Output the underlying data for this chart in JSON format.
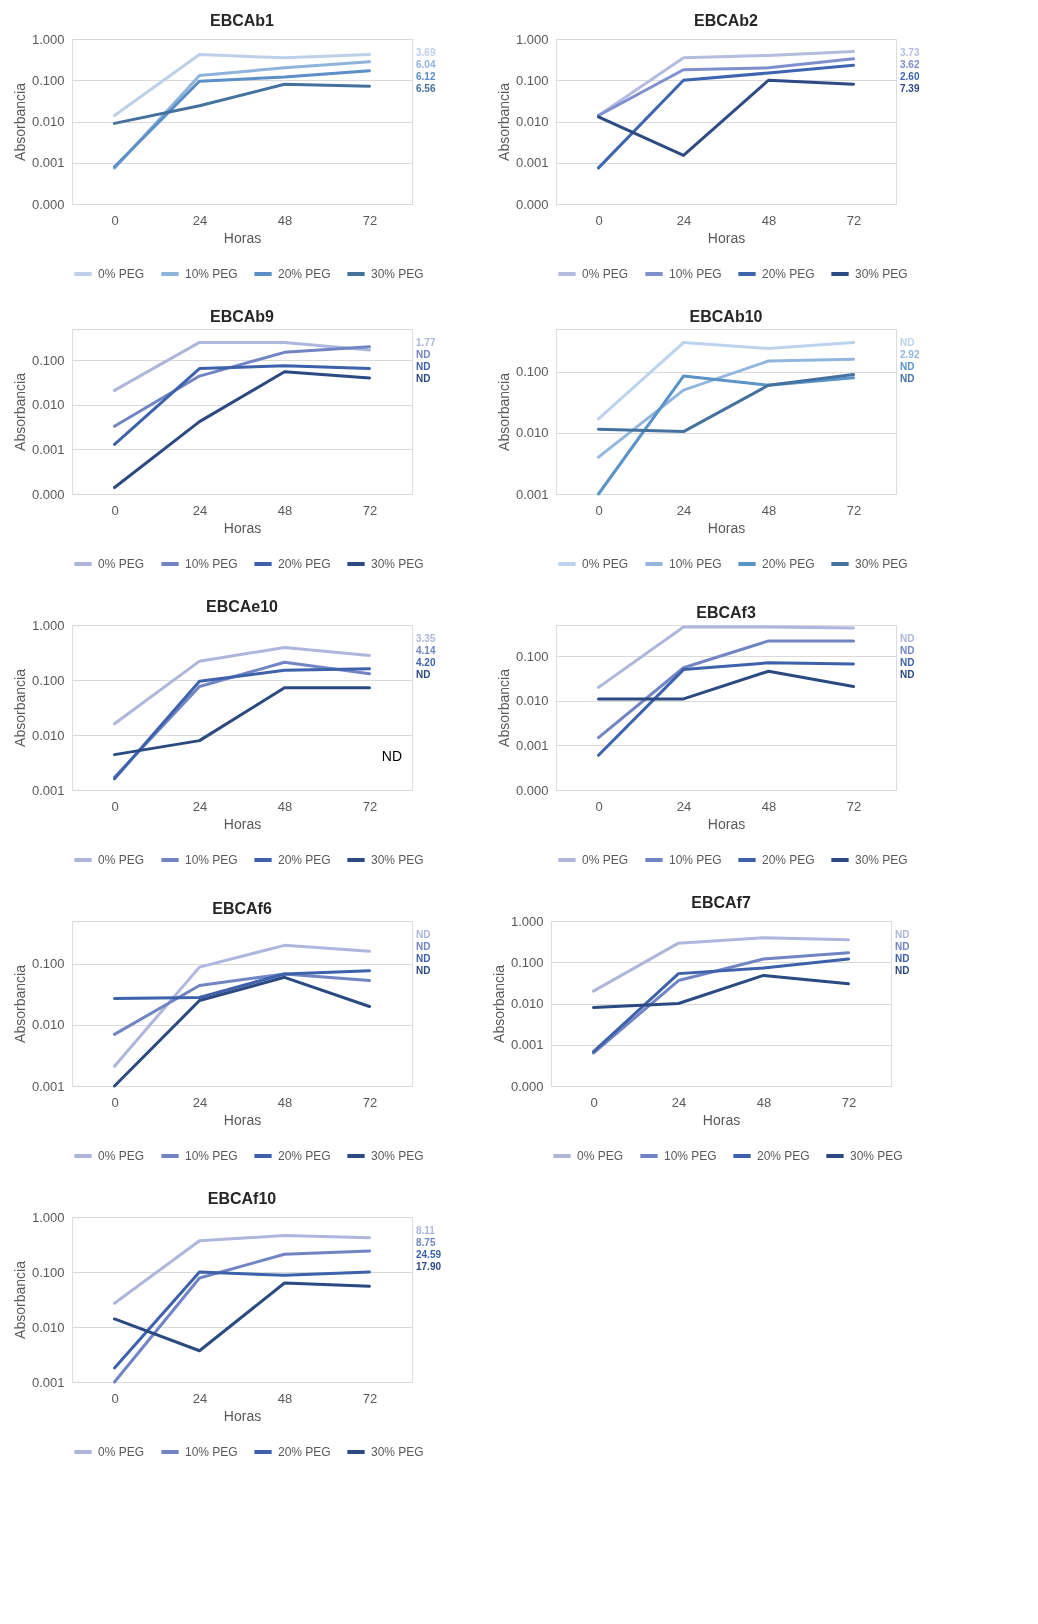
{
  "chart_data": [
    {
      "type": "line",
      "title": "EBCAb1",
      "xlabel": "Horas",
      "ylabel": "Absorbancia",
      "categories": [
        "0",
        "24",
        "48",
        "72"
      ],
      "log": true,
      "grid": "y",
      "legend": "bottom",
      "ylim": [
        0.0001,
        1
      ],
      "yticks": [
        {
          "value": 1,
          "label": "1.000"
        },
        {
          "value": 0.1,
          "label": "0.100"
        },
        {
          "value": 0.01,
          "label": "0.010"
        },
        {
          "value": 0.001,
          "label": "0.001"
        },
        {
          "value": 0.0001,
          "label": "0.000"
        }
      ],
      "series": [
        {
          "name": "0% PEG",
          "color": "#bdd0ea",
          "values": [
            0.014,
            0.42,
            0.35,
            0.42
          ]
        },
        {
          "name": "10% PEG",
          "color": "#8fb4dc",
          "values": [
            0.00074,
            0.13,
            0.2,
            0.28
          ]
        },
        {
          "name": "20% PEG",
          "color": "#5a8fc7",
          "values": [
            0.0008,
            0.095,
            0.12,
            0.17
          ]
        },
        {
          "name": "30% PEG",
          "color": "#44729d",
          "values": [
            0.009,
            0.024,
            0.08,
            0.072
          ]
        }
      ],
      "annotations": [
        "3.69",
        "6.04",
        "6.12",
        "6.56"
      ]
    },
    {
      "type": "line",
      "title": "EBCAb2",
      "xlabel": "Horas",
      "ylabel": "Absorbancia",
      "categories": [
        "0",
        "24",
        "48",
        "72"
      ],
      "log": true,
      "grid": "y",
      "legend": "bottom",
      "ylim": [
        0.0001,
        1
      ],
      "yticks": [
        {
          "value": 1,
          "label": "1.000"
        },
        {
          "value": 0.1,
          "label": "0.100"
        },
        {
          "value": 0.01,
          "label": "0.010"
        },
        {
          "value": 0.001,
          "label": "0.001"
        },
        {
          "value": 0.0001,
          "label": "0.000"
        }
      ],
      "series": [
        {
          "name": "0% PEG",
          "color": "#b4bde0",
          "values": [
            0.014,
            0.35,
            0.4,
            0.5
          ]
        },
        {
          "name": "10% PEG",
          "color": "#7d8fcc",
          "values": [
            0.014,
            0.18,
            0.2,
            0.33
          ]
        },
        {
          "name": "20% PEG",
          "color": "#3d65b0",
          "values": [
            0.00075,
            0.1,
            0.15,
            0.23
          ]
        },
        {
          "name": "30% PEG",
          "color": "#2e4a85",
          "values": [
            0.013,
            0.0015,
            0.1,
            0.08
          ]
        }
      ],
      "annotations": [
        "3.73",
        "3.62",
        "2.60",
        "7.39"
      ]
    },
    {
      "type": "line",
      "title": "EBCAb9",
      "xlabel": "Horas",
      "ylabel": "Absorbancia",
      "categories": [
        "0",
        "24",
        "48",
        "72"
      ],
      "log": true,
      "grid": "y",
      "legend": "bottom",
      "ylim": [
        0.0001,
        0.5
      ],
      "yticks": [
        {
          "value": 0.5,
          "label": null
        },
        {
          "value": 0.1,
          "label": "0.100"
        },
        {
          "value": 0.01,
          "label": "0.010"
        },
        {
          "value": 0.001,
          "label": "0.001"
        },
        {
          "value": 0.0001,
          "label": "0.000"
        }
      ],
      "series": [
        {
          "name": "0% PEG",
          "color": "#aeb6dc",
          "values": [
            0.021,
            0.25,
            0.25,
            0.17
          ]
        },
        {
          "name": "10% PEG",
          "color": "#7185c4",
          "values": [
            0.0033,
            0.044,
            0.15,
            0.2
          ]
        },
        {
          "name": "20% PEG",
          "color": "#3d62ab",
          "values": [
            0.0013,
            0.065,
            0.075,
            0.065
          ]
        },
        {
          "name": "30% PEG",
          "color": "#2c4a82",
          "values": [
            0.00014,
            0.0042,
            0.055,
            0.04
          ]
        }
      ],
      "annotations": [
        "1.77",
        "ND",
        "ND",
        "ND"
      ]
    },
    {
      "type": "line",
      "title": "EBCAb10",
      "xlabel": "Horas",
      "ylabel": "Absorbancia",
      "categories": [
        "0",
        "24",
        "48",
        "72"
      ],
      "log": true,
      "grid": "y",
      "legend": "bottom",
      "ylim": [
        0.001,
        0.5
      ],
      "yticks": [
        {
          "value": 0.5,
          "label": null
        },
        {
          "value": 0.1,
          "label": "0.100"
        },
        {
          "value": 0.01,
          "label": "0.010"
        },
        {
          "value": 0.001,
          "label": "0.001"
        }
      ],
      "series": [
        {
          "name": "0% PEG",
          "color": "#bcd3ee",
          "values": [
            0.017,
            0.3,
            0.24,
            0.3
          ]
        },
        {
          "name": "10% PEG",
          "color": "#92b6dd",
          "values": [
            0.004,
            0.05,
            0.15,
            0.16
          ]
        },
        {
          "name": "20% PEG",
          "color": "#5a93c8",
          "values": [
            0.001,
            0.085,
            0.06,
            0.08
          ]
        },
        {
          "name": "30% PEG",
          "color": "#4672a0",
          "values": [
            0.0115,
            0.0105,
            0.06,
            0.09
          ]
        }
      ],
      "annotations": [
        "ND",
        "2.92",
        "ND",
        "ND"
      ]
    },
    {
      "type": "line",
      "title": "EBCAe10",
      "xlabel": "Horas",
      "ylabel": "Absorbancia",
      "categories": [
        "0",
        "24",
        "48",
        "72"
      ],
      "log": true,
      "grid": "y",
      "legend": "bottom",
      "ylim": [
        0.001,
        1
      ],
      "yticks": [
        {
          "value": 1,
          "label": "1.000"
        },
        {
          "value": 0.1,
          "label": "0.100"
        },
        {
          "value": 0.01,
          "label": "0.010"
        },
        {
          "value": 0.001,
          "label": "0.001"
        }
      ],
      "series": [
        {
          "name": "0% PEG",
          "color": "#aeb6dc",
          "values": [
            0.016,
            0.22,
            0.39,
            0.28
          ]
        },
        {
          "name": "10% PEG",
          "color": "#7185c4",
          "values": [
            0.0017,
            0.076,
            0.21,
            0.13
          ]
        },
        {
          "name": "20% PEG",
          "color": "#3d62ab",
          "values": [
            0.0016,
            0.095,
            0.15,
            0.16
          ]
        },
        {
          "name": "30% PEG",
          "color": "#2c4a82",
          "values": [
            0.0044,
            0.0079,
            0.072,
            0.072
          ]
        }
      ],
      "annotations": [
        "3.35",
        "4.14",
        "4.20",
        "ND",
        "ND"
      ]
    },
    {
      "type": "line",
      "title": "EBCAf3",
      "xlabel": "Horas",
      "ylabel": "Absorbancia",
      "categories": [
        "0",
        "24",
        "48",
        "72"
      ],
      "log": true,
      "grid": "y",
      "legend": "bottom",
      "ylim": [
        0.0001,
        0.5
      ],
      "yticks": [
        {
          "value": 0.5,
          "label": null
        },
        {
          "value": 0.1,
          "label": "0.100"
        },
        {
          "value": 0.01,
          "label": "0.010"
        },
        {
          "value": 0.001,
          "label": "0.001"
        },
        {
          "value": 0.0001,
          "label": "0.000"
        }
      ],
      "series": [
        {
          "name": "0% PEG",
          "color": "#aeb6dc",
          "values": [
            0.02,
            0.45,
            0.45,
            0.43
          ]
        },
        {
          "name": "10% PEG",
          "color": "#7185c4",
          "values": [
            0.0015,
            0.055,
            0.22,
            0.22
          ]
        },
        {
          "name": "20% PEG",
          "color": "#3d62ab",
          "values": [
            0.0006,
            0.05,
            0.071,
            0.067
          ]
        },
        {
          "name": "30% PEG",
          "color": "#2c4a82",
          "values": [
            0.011,
            0.011,
            0.046,
            0.021
          ]
        }
      ],
      "annotations": [
        "ND",
        "ND",
        "ND",
        "ND"
      ]
    },
    {
      "type": "line",
      "title": "EBCAf6",
      "xlabel": "Horas",
      "ylabel": "Absorbancia",
      "categories": [
        "0",
        "24",
        "48",
        "72"
      ],
      "log": true,
      "grid": "y",
      "legend": "bottom",
      "ylim": [
        0.001,
        0.5
      ],
      "yticks": [
        {
          "value": 0.5,
          "label": null
        },
        {
          "value": 0.1,
          "label": "0.100"
        },
        {
          "value": 0.01,
          "label": "0.010"
        },
        {
          "value": 0.001,
          "label": "0.001"
        }
      ],
      "series": [
        {
          "name": "0% PEG",
          "color": "#aeb6dc",
          "values": [
            0.0021,
            0.088,
            0.2,
            0.16
          ]
        },
        {
          "name": "10% PEG",
          "color": "#7185c4",
          "values": [
            0.007,
            0.044,
            0.068,
            0.053
          ]
        },
        {
          "name": "20% PEG",
          "color": "#3d62ab",
          "values": [
            0.027,
            0.028,
            0.068,
            0.077
          ]
        },
        {
          "name": "30% PEG",
          "color": "#2c4a82",
          "values": [
            0.001,
            0.025,
            0.06,
            0.02
          ]
        }
      ],
      "annotations": [
        "ND",
        "ND",
        "ND",
        "ND"
      ]
    },
    {
      "type": "line",
      "title": "EBCAf7",
      "xlabel": "Horas",
      "ylabel": "Absorbancia",
      "categories": [
        "0",
        "24",
        "48",
        "72"
      ],
      "log": true,
      "grid": "y",
      "legend": "bottom",
      "ylim": [
        0.0001,
        1
      ],
      "yticks": [
        {
          "value": 1,
          "label": "1.000"
        },
        {
          "value": 0.1,
          "label": "0.100"
        },
        {
          "value": 0.01,
          "label": "0.010"
        },
        {
          "value": 0.001,
          "label": "0.001"
        },
        {
          "value": 0.0001,
          "label": "0.000"
        }
      ],
      "series": [
        {
          "name": "0% PEG",
          "color": "#aeb6dc",
          "values": [
            0.02,
            0.29,
            0.39,
            0.35
          ]
        },
        {
          "name": "10% PEG",
          "color": "#7185c4",
          "values": [
            0.00063,
            0.036,
            0.12,
            0.17
          ]
        },
        {
          "name": "20% PEG",
          "color": "#3d62ab",
          "values": [
            0.00068,
            0.053,
            0.073,
            0.12
          ]
        },
        {
          "name": "30% PEG",
          "color": "#2c4a82",
          "values": [
            0.008,
            0.01,
            0.048,
            0.03
          ]
        }
      ],
      "annotations": [
        "ND",
        "ND",
        "ND",
        "ND"
      ]
    },
    {
      "type": "line",
      "title": "EBCAf10",
      "xlabel": "Horas",
      "ylabel": "Absorbancia",
      "categories": [
        "0",
        "24",
        "48",
        "72"
      ],
      "log": true,
      "grid": "y",
      "legend": "bottom",
      "ylim": [
        0.001,
        1
      ],
      "yticks": [
        {
          "value": 1,
          "label": "1.000"
        },
        {
          "value": 0.1,
          "label": "0.100"
        },
        {
          "value": 0.01,
          "label": "0.010"
        },
        {
          "value": 0.001,
          "label": "0.001"
        }
      ],
      "series": [
        {
          "name": "0% PEG",
          "color": "#aeb6dc",
          "values": [
            0.027,
            0.37,
            0.46,
            0.42
          ]
        },
        {
          "name": "10% PEG",
          "color": "#7185c4",
          "values": [
            0.001,
            0.078,
            0.21,
            0.24
          ]
        },
        {
          "name": "20% PEG",
          "color": "#3d62ab",
          "values": [
            0.0018,
            0.1,
            0.087,
            0.1
          ]
        },
        {
          "name": "30% PEG",
          "color": "#2c4a82",
          "values": [
            0.014,
            0.0037,
            0.063,
            0.055
          ]
        }
      ],
      "annotations": [
        "8.11",
        "8.75",
        "24.59",
        "17.90"
      ]
    }
  ]
}
